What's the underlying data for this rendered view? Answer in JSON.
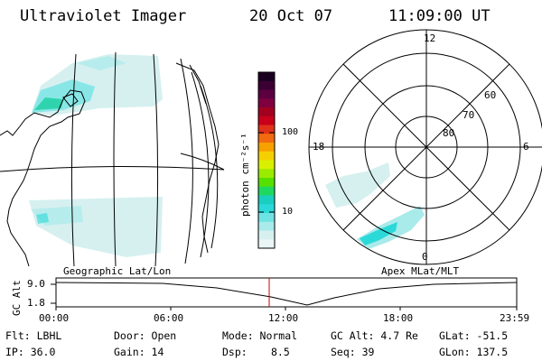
{
  "header": {
    "instrument": "Ultraviolet Imager",
    "date": "20 Oct 07",
    "time": "11:09:00 UT"
  },
  "map_panel": {
    "label": "Geographic Lat/Lon"
  },
  "polar_panel": {
    "label": "Apex MLat/MLT",
    "mlt_labels": {
      "top": "12",
      "left": "18",
      "right": "6",
      "bottom": "0"
    },
    "lat_labels": [
      "60",
      "70",
      "80"
    ]
  },
  "colorbar": {
    "unit_label": "photon cm⁻²s⁻¹",
    "ticks": [
      "100",
      "10"
    ],
    "colors": [
      "#1a0020",
      "#3b0033",
      "#5c0040",
      "#80003f",
      "#a30020",
      "#c8001a",
      "#e0321a",
      "#f26a10",
      "#f7a000",
      "#f5d000",
      "#d8f000",
      "#9aeb00",
      "#55e000",
      "#1fd860",
      "#19cfc0",
      "#2bd9d9",
      "#6fe3e3",
      "#a9eaea",
      "#d6f0f0",
      "#eaf5f5"
    ]
  },
  "alt_plot": {
    "ylabel": "GC Alt",
    "yticks": [
      "9.0",
      "1.8"
    ],
    "xticks": [
      "00:00",
      "06:00",
      "12:00",
      "18:00",
      "23:59"
    ],
    "marker_color": "#cc0000"
  },
  "params": {
    "flt": "Flt: LBHL",
    "ip": "IP: 36.0",
    "door": "Door: Open",
    "gain": "Gain: 14",
    "mode": "Mode: Normal",
    "dsp_label": "Dsp:",
    "dsp_value": "8.5",
    "gc_alt": "GC Alt: 4.7 Re",
    "seq": "Seq: 39",
    "glat": "GLat: -51.5",
    "glon": "GLon: 137.5"
  }
}
